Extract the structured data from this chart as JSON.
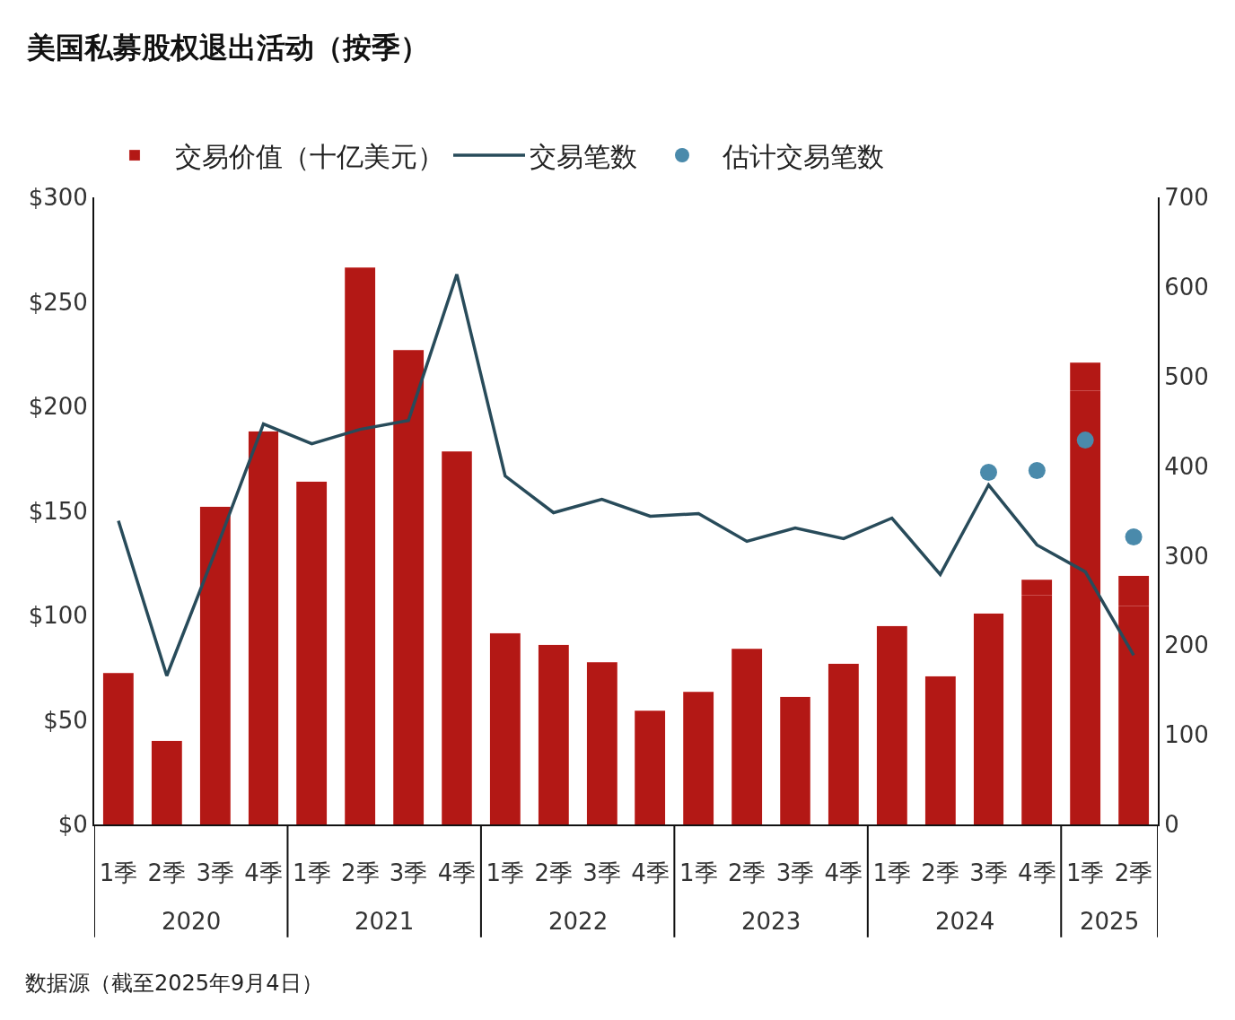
{
  "chart_data": {
    "type": "bar",
    "title": "美国私募股权退出活动（按季）",
    "categories": [
      "1季",
      "2季",
      "3季",
      "4季",
      "1季",
      "2季",
      "3季",
      "4季",
      "1季",
      "2季",
      "3季",
      "4季",
      "1季",
      "2季",
      "3季",
      "4季",
      "1季",
      "2季",
      "3季",
      "4季",
      "1季",
      "2季"
    ],
    "annotations": [
      "2020",
      "2021",
      "2022",
      "2023",
      "2024",
      "2025",
      "数据源（截至2025年9月4日）"
    ],
    "stacked": true,
    "series": [
      {
        "name": "交易价值（十亿美元）",
        "color": "#b31815",
        "values": [
          72.5,
          40,
          152,
          188,
          164,
          266.5,
          227,
          178.5,
          91.5,
          86,
          77.5,
          54.5,
          63.5,
          84,
          61,
          77,
          95,
          71,
          101,
          109.5,
          207.5,
          104.5
        ]
      },
      {
        "color": "#b31815",
        "values": [
          null,
          null,
          null,
          null,
          null,
          null,
          null,
          null,
          null,
          null,
          null,
          null,
          null,
          null,
          null,
          null,
          null,
          null,
          null,
          7.5,
          13.5,
          14.5
        ]
      },
      {
        "name": "交易笔数",
        "type": "line",
        "axis": "y2",
        "color": "#284b5a",
        "marker": "none",
        "line_style": "solid",
        "values": [
          339,
          166,
          304,
          447,
          425,
          441,
          451,
          614,
          389,
          348,
          363,
          344,
          347,
          316,
          331,
          319,
          342,
          279,
          379,
          312,
          282,
          189
        ]
      },
      {
        "name": "估计交易笔数",
        "type": "scatter",
        "axis": "y2",
        "color": "#4a8aab",
        "marker": "circle",
        "values": [
          null,
          null,
          null,
          null,
          null,
          null,
          null,
          null,
          null,
          null,
          null,
          null,
          null,
          null,
          null,
          null,
          null,
          null,
          393,
          395,
          429,
          321
        ]
      }
    ],
    "ylim": [
      0,
      300
    ],
    "yticks": [
      {
        "value": 0,
        "label": "$0"
      },
      {
        "value": 50,
        "label": "$50"
      },
      {
        "value": 100,
        "label": "$100"
      },
      {
        "value": 150,
        "label": "$150"
      },
      {
        "value": 200,
        "label": "$200"
      },
      {
        "value": 250,
        "label": "$250"
      },
      {
        "value": 300,
        "label": "$300"
      }
    ],
    "y2lim": [
      0,
      700
    ],
    "y2ticks": [
      0,
      100,
      200,
      300,
      400,
      500,
      600,
      700
    ],
    "legend": "top left"
  }
}
